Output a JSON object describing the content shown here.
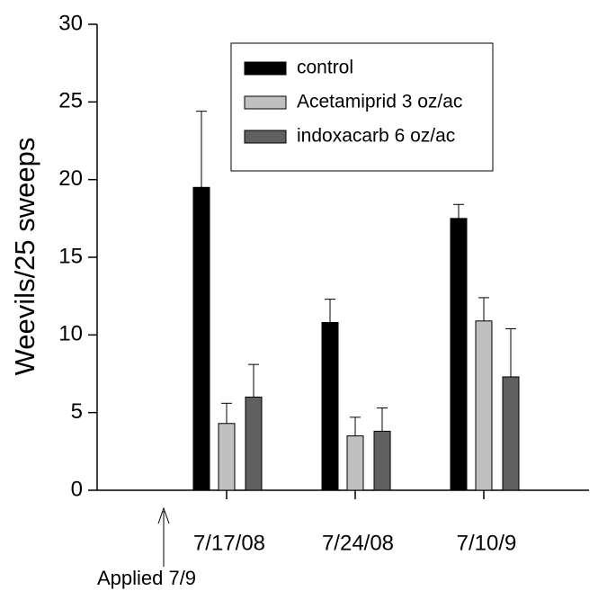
{
  "chart_data": {
    "type": "bar",
    "y_label": "Weevils/25 sweeps",
    "annotation": "Applied 7/9",
    "categories": [
      "7/17/08",
      "7/24/08",
      "7/10/9"
    ],
    "series": [
      {
        "name": "control",
        "color": "#000000",
        "values": [
          19.5,
          10.8,
          17.5
        ],
        "errors": [
          4.9,
          1.5,
          0.9
        ]
      },
      {
        "name": "Acetamiprid 3 oz/ac",
        "color": "#c0c0c0",
        "values": [
          4.3,
          3.5,
          10.9
        ],
        "errors": [
          1.3,
          1.2,
          1.5
        ]
      },
      {
        "name": "indoxacarb 6 oz/ac",
        "color": "#606060",
        "values": [
          6.0,
          3.8,
          7.3
        ],
        "errors": [
          2.1,
          1.5,
          3.1
        ]
      }
    ],
    "ylim": [
      0,
      30
    ],
    "yticks": [
      0,
      5,
      10,
      15,
      20,
      25,
      30
    ],
    "legend": "top-center"
  }
}
